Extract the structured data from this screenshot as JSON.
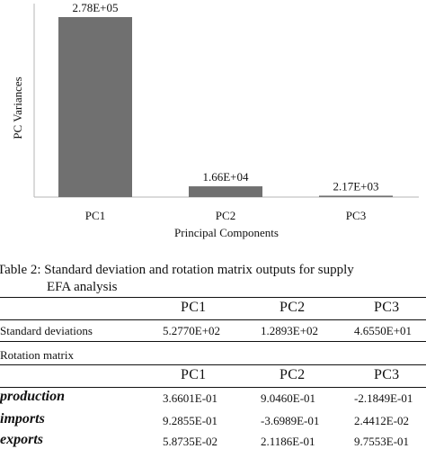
{
  "chart_data": {
    "type": "bar",
    "categories": [
      "PC1",
      "PC2",
      "PC3"
    ],
    "values": [
      278000,
      16600,
      2170
    ],
    "data_labels": [
      "2.78E+05",
      "1.66E+04",
      "2.17E+03"
    ],
    "xlabel": "Principal Components",
    "ylabel": "PC Variances",
    "ylim": [
      0,
      278000
    ],
    "grid": false,
    "bar_color": "#707070"
  },
  "caption": {
    "line1": "Table 2: Standard deviation and rotation matrix outputs for supply",
    "line2": "EFA analysis"
  },
  "table": {
    "columns": [
      "PC1",
      "PC2",
      "PC3"
    ],
    "std_label": "Standard deviations",
    "std_values": [
      "5.2770E+02",
      "1.2893E+02",
      "4.6550E+01"
    ],
    "rotation_label": "Rotation matrix",
    "rotation_columns": [
      "PC1",
      "PC2",
      "PC3"
    ],
    "rows": [
      {
        "label": "production",
        "values": [
          "3.6601E-01",
          "9.0460E-01",
          "-2.1849E-01"
        ]
      },
      {
        "label": "imports",
        "values": [
          "9.2855E-01",
          "-3.6989E-01",
          "2.4412E-02"
        ]
      },
      {
        "label": "exports",
        "values": [
          "5.8735E-02",
          "2.1186E-01",
          "9.7553E-01"
        ]
      }
    ]
  }
}
